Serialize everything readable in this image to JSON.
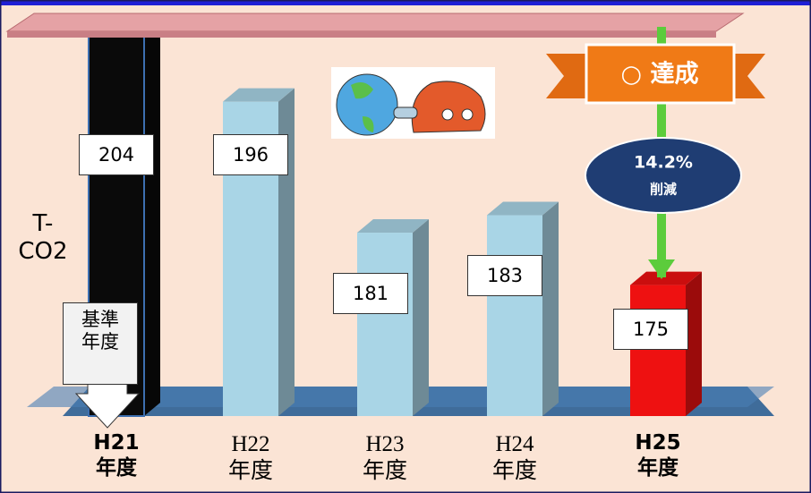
{
  "chart_data": {
    "type": "bar",
    "y_label": "T-\nCO2",
    "categories": [
      "H21\n年度",
      "H22\n年度",
      "H23\n年度",
      "H24\n年度",
      "H25\n年度"
    ],
    "values": [
      204,
      196,
      181,
      183,
      175
    ],
    "colors": [
      "#0a0a0a",
      "#a9d5e6",
      "#a9d5e6",
      "#a9d5e6",
      "#ee1111"
    ],
    "ylim": [
      160,
      210
    ],
    "baseline_note": "基準\n年度",
    "achievement": "○ 達成",
    "reduction": "14.2%",
    "reduction_label": "削減"
  }
}
